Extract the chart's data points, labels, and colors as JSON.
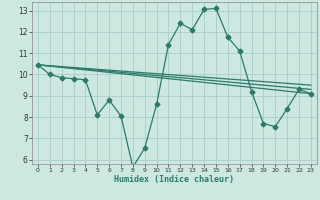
{
  "background_color": "#cce8e0",
  "grid_color": "#aacccc",
  "line_color": "#2d7a6a",
  "xlabel": "Humidex (Indice chaleur)",
  "xlim": [
    -0.5,
    23.5
  ],
  "ylim": [
    5.8,
    13.4
  ],
  "yticks": [
    6,
    7,
    8,
    9,
    10,
    11,
    12,
    13
  ],
  "xticks": [
    0,
    1,
    2,
    3,
    4,
    5,
    6,
    7,
    8,
    9,
    10,
    11,
    12,
    13,
    14,
    15,
    16,
    17,
    18,
    19,
    20,
    21,
    22,
    23
  ],
  "line1_x": [
    0,
    1,
    2,
    3,
    4,
    5,
    6,
    7,
    8,
    9,
    10,
    11,
    12,
    13,
    14,
    15,
    16,
    17,
    18,
    19,
    20,
    21,
    22,
    23
  ],
  "line1_y": [
    10.45,
    10.0,
    9.85,
    9.8,
    9.75,
    8.1,
    8.8,
    8.05,
    5.65,
    6.55,
    8.6,
    11.4,
    12.4,
    12.1,
    13.05,
    13.1,
    11.75,
    11.1,
    9.2,
    7.7,
    7.55,
    8.4,
    9.3,
    9.1
  ],
  "line2_x": [
    0,
    23
  ],
  "line2_y": [
    10.45,
    9.3
  ],
  "line3_x": [
    0,
    23
  ],
  "line3_y": [
    10.45,
    9.1
  ],
  "line4_x": [
    0,
    23
  ],
  "line4_y": [
    10.45,
    9.5
  ],
  "marker_size": 2.5,
  "linewidth": 0.9
}
